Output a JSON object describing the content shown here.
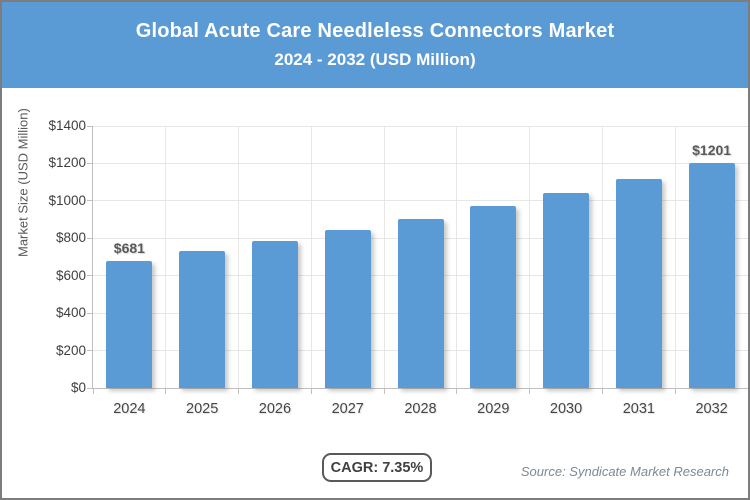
{
  "header": {
    "title_line1": "Global Acute Care Needleless Connectors Market",
    "title_line2": "2024 - 2032 (USD Million)",
    "bg_color": "#5B9BD5",
    "text_color": "#FFFFFF"
  },
  "chart_data": {
    "type": "bar",
    "title": "Global Acute Care Needleless Connectors Market 2024 - 2032 (USD Million)",
    "categories": [
      "2024",
      "2025",
      "2026",
      "2027",
      "2028",
      "2029",
      "2030",
      "2031",
      "2032"
    ],
    "values": [
      681,
      731,
      785,
      843,
      905,
      971,
      1043,
      1119,
      1201
    ],
    "value_labels": [
      {
        "index": 0,
        "label": "$681"
      },
      {
        "index": 8,
        "label": "$1201"
      }
    ],
    "xlabel": "",
    "ylabel": "Market Size (USD Million)",
    "ylim": [
      0,
      1400
    ],
    "ytick_values": [
      0,
      200,
      400,
      600,
      800,
      1000,
      1200,
      1400
    ],
    "ytick_labels": [
      "$0",
      "$200",
      "$400",
      "$600",
      "$800",
      "$1000",
      "$1200",
      "$1400"
    ],
    "grid": true,
    "legend": false,
    "bar_color": "#5B9BD5",
    "gridline_color": "#E7E7E7",
    "axis_color": "#BFBFBF"
  },
  "footer": {
    "cagr_label": "CAGR: 7.35%",
    "source_label": "Source: Syndicate Market Research"
  }
}
